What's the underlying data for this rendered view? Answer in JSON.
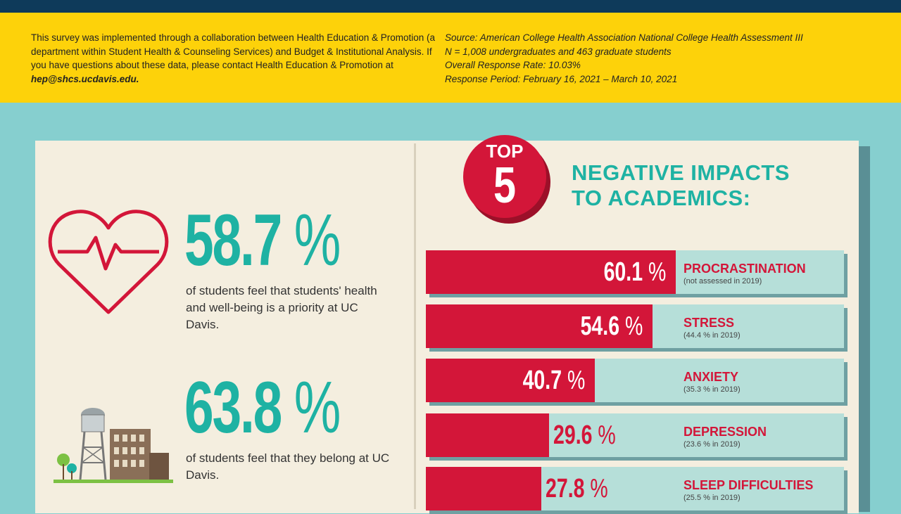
{
  "header": {
    "info_left": {
      "text": "This survey was implemented through a collaboration between Health Education & Promotion (a department within Student Health & Counseling Services) and Budget & Institutional Analysis. If you have questions about these data, please contact Health Education & Promotion at ",
      "email": "hep@shcs.ucdavis.edu."
    },
    "info_right": {
      "source": "Source: American College Health Association National College Health Assessment III",
      "n": "N = 1,008 undergraduates and 463 graduate students",
      "rate": "Overall Response Rate: 10.03%",
      "period": "Response Period: February 16, 2021 – March 10, 2021"
    }
  },
  "stats": [
    {
      "value": "58.7",
      "unit": "%",
      "caption": "of students feel that students' health and well-being is a priority at UC Davis.",
      "icon": "heartbeat-icon"
    },
    {
      "value": "63.8",
      "unit": "%",
      "caption": "of students feel that they belong at UC Davis.",
      "icon": "campus-water-tower-icon"
    }
  ],
  "top5": {
    "top": "TOP",
    "num": "5",
    "title_line1": "NEGATIVE IMPACTS",
    "title_line2": "TO ACADEMICS:"
  },
  "colors": {
    "red": "#d31639",
    "teal": "#1eb2a3",
    "yellow": "#fdd20a",
    "navy": "#0e3a5a"
  },
  "chart_data": {
    "type": "bar",
    "categories": [
      "PROCRASTINATION",
      "STRESS",
      "ANXIETY",
      "DEPRESSION",
      "SLEEP DIFFICULTIES"
    ],
    "values": [
      60.1,
      54.6,
      40.7,
      29.6,
      27.8
    ],
    "value_labels": [
      "60.1",
      "54.6",
      "40.7",
      "29.6",
      "27.8"
    ],
    "unit": "%",
    "notes": [
      "(not assessed in 2019)",
      "(44.4 % in 2019)",
      "(35.3 % in 2019)",
      "(23.6 % in 2019)",
      "(25.5 % in 2019)"
    ]
  }
}
